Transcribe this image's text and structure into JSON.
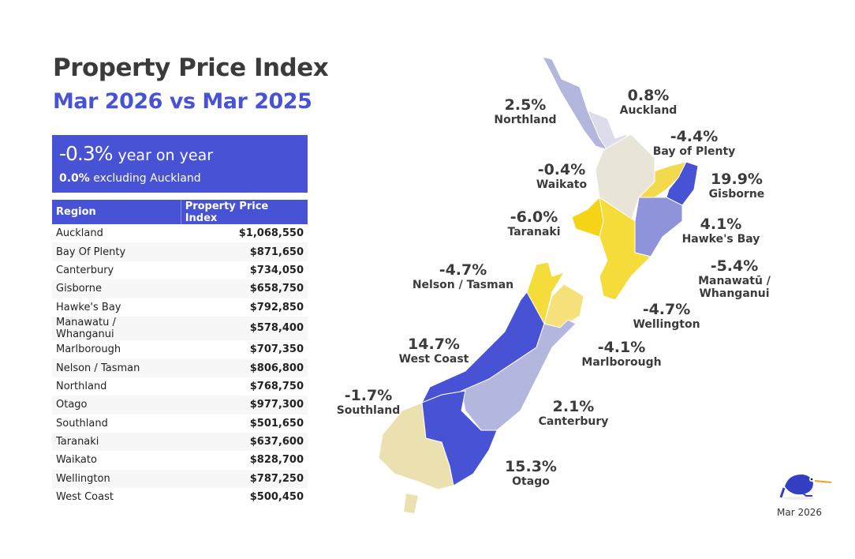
{
  "title": "Property Price Index",
  "subtitle": "Mar 2026 vs Mar 2025",
  "kpi": {
    "value": "-0.3%",
    "value_text": "year on year",
    "ex_value": "0.0%",
    "ex_text": "excluding Auckland"
  },
  "table": {
    "headers": [
      "Region",
      "Property Price Index"
    ],
    "rows": [
      [
        "Auckland",
        "$1,068,550"
      ],
      [
        "Bay Of Plenty",
        "$871,650"
      ],
      [
        "Canterbury",
        "$734,050"
      ],
      [
        "Gisborne",
        "$658,750"
      ],
      [
        "Hawke's Bay",
        "$792,850"
      ],
      [
        "Manawatu / Whanganui",
        "$578,400"
      ],
      [
        "Marlborough",
        "$707,350"
      ],
      [
        "Nelson / Tasman",
        "$806,800"
      ],
      [
        "Northland",
        "$768,750"
      ],
      [
        "Otago",
        "$977,300"
      ],
      [
        "Southland",
        "$501,650"
      ],
      [
        "Taranaki",
        "$637,600"
      ],
      [
        "Waikato",
        "$828,700"
      ],
      [
        "Wellington",
        "$787,250"
      ],
      [
        "West Coast",
        "$500,450"
      ]
    ]
  },
  "chart_data": {
    "type": "choropleth map",
    "regions": [
      {
        "name": "Northland",
        "change": "2.5%",
        "color": "#b3b7de"
      },
      {
        "name": "Auckland",
        "change": "0.8%",
        "color": "#dcdcea"
      },
      {
        "name": "Bay of Plenty",
        "change": "-4.4%",
        "color": "#f2d94e"
      },
      {
        "name": "Waikato",
        "change": "-0.4%",
        "color": "#e8e4d8"
      },
      {
        "name": "Gisborne",
        "change": "19.9%",
        "color": "#4752d4"
      },
      {
        "name": "Taranaki",
        "change": "-6.0%",
        "color": "#f5d418"
      },
      {
        "name": "Hawke's Bay",
        "change": "4.1%",
        "color": "#8e93da"
      },
      {
        "name": "Manawatū / Whanganui",
        "change": "-5.4%",
        "color": "#f6dc3a"
      },
      {
        "name": "Nelson / Tasman",
        "change": "-4.7%",
        "color": "#f6dc3a"
      },
      {
        "name": "Wellington",
        "change": "-4.7%",
        "color": "#f6dc3a"
      },
      {
        "name": "West Coast",
        "change": "14.7%",
        "color": "#4752d4"
      },
      {
        "name": "Marlborough",
        "change": "-4.1%",
        "color": "#f5e07a"
      },
      {
        "name": "Southland",
        "change": "-1.7%",
        "color": "#ebe1b0"
      },
      {
        "name": "Canterbury",
        "change": "2.1%",
        "color": "#b3b7de"
      },
      {
        "name": "Otago",
        "change": "15.3%",
        "color": "#4752d4"
      }
    ]
  },
  "footer": {
    "date": "Mar 2026",
    "logo": "kiwi bird"
  }
}
